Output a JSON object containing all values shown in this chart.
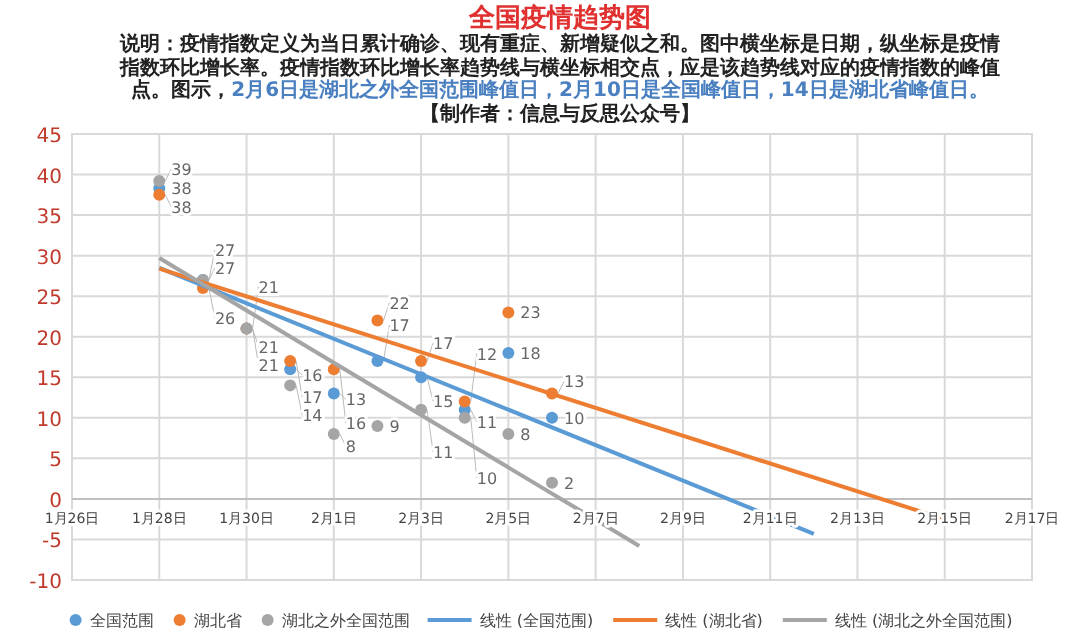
{
  "chart_data": {
    "type": "scatter",
    "title": "全国疫情趋势图",
    "subtitle": "说明：疫情指数定义为当日累计确诊、现有重症、新增疑似之和。图中横坐标是日期，纵坐标是疫情指数环比增长率。疫情指数环比增长率趋势线与横坐标相交点，应是该趋势线对应的疫情指数的峰值点。图示，",
    "annotations": [
      "2月6日是湖北之外全国范围峰值日，2月10日是全国峰值日，14日是湖北省峰值日。",
      "【制作者：信息与反思公众号】"
    ],
    "xlim": [
      "--01-26",
      "--02-17"
    ],
    "xticks": [
      {
        "value": "--01-26",
        "label": "1月26日"
      },
      {
        "value": "--01-28",
        "label": "1月28日"
      },
      {
        "value": "--01-30",
        "label": "1月30日"
      },
      {
        "value": "--02-01",
        "label": "2月1日"
      },
      {
        "value": "--02-03",
        "label": "2月3日"
      },
      {
        "value": "--02-05",
        "label": "2月5日"
      },
      {
        "value": "--02-07",
        "label": "2月7日"
      },
      {
        "value": "--02-09",
        "label": "2月9日"
      },
      {
        "value": "--02-11",
        "label": "2月11日"
      },
      {
        "value": "--02-13",
        "label": "2月13日"
      },
      {
        "value": "--02-15",
        "label": "2月15日"
      },
      {
        "value": "--02-17",
        "label": "2月17日"
      }
    ],
    "ylim": [
      -10,
      45
    ],
    "yticks": [
      -10,
      -5,
      0,
      5,
      10,
      15,
      20,
      25,
      30,
      35,
      40,
      45
    ],
    "grid": true,
    "legend": "bottom",
    "marker": "circle",
    "series": [
      {
        "name": "全国范围",
        "color": "#5b9bd5",
        "x": [
          "--01-28",
          "--01-29",
          "--01-30",
          "--01-31",
          "--02-01",
          "--02-02",
          "--02-03",
          "--02-04",
          "--02-05",
          "--02-06"
        ],
        "values": [
          38.3,
          27,
          21,
          16,
          13,
          17,
          15,
          11,
          18,
          10
        ],
        "value_labels": [
          "38",
          "27",
          "21",
          "16",
          "13",
          "17",
          "15",
          "11",
          "18",
          "10"
        ]
      },
      {
        "name": "湖北省",
        "color": "#ed7d31",
        "x": [
          "--01-28",
          "--01-29",
          "--01-30",
          "--01-31",
          "--02-01",
          "--02-02",
          "--02-03",
          "--02-04",
          "--02-05",
          "--02-06"
        ],
        "values": [
          37.5,
          26,
          21,
          17,
          16,
          22,
          17,
          12,
          23,
          13
        ],
        "value_labels": [
          "38",
          "26",
          "21",
          "17",
          "16",
          "22",
          "17",
          "12",
          "23",
          "13"
        ]
      },
      {
        "name": "湖北之外全国范围",
        "color": "#a5a5a5",
        "x": [
          "--01-28",
          "--01-29",
          "--01-30",
          "--01-31",
          "--02-01",
          "--02-02",
          "--02-03",
          "--02-04",
          "--02-05",
          "--02-06"
        ],
        "values": [
          39.2,
          27,
          21,
          14,
          8,
          9,
          11,
          10,
          8,
          2
        ],
        "value_labels": [
          "39",
          "27",
          "21",
          "14",
          "8",
          "9",
          "11",
          "10",
          "8",
          "2"
        ]
      },
      {
        "name": "线性 (全国范围)",
        "type": "line",
        "marker": "none",
        "color": "#5b9bd5",
        "x": [
          "--01-28",
          "--02-12"
        ],
        "values": [
          28.5,
          -4.3
        ]
      },
      {
        "name": "线性 (湖北省)",
        "type": "line",
        "marker": "none",
        "color": "#ed7d31",
        "x": [
          "--01-28",
          "--02-15"
        ],
        "values": [
          28.4,
          -2.5
        ]
      },
      {
        "name": "线性 (湖北之外全国范围)",
        "type": "line",
        "marker": "none",
        "color": "#a5a5a5",
        "x": [
          "--01-28",
          "--02-08"
        ],
        "values": [
          29.7,
          -5.8
        ]
      }
    ]
  }
}
